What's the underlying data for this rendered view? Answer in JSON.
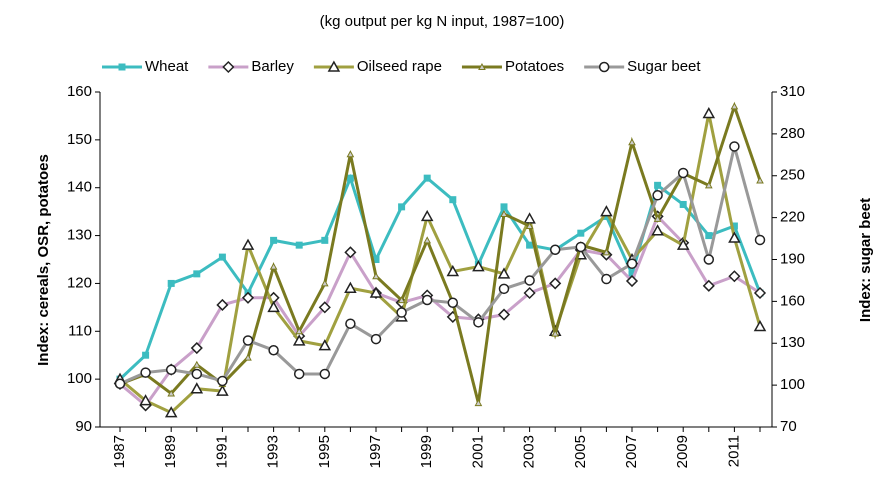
{
  "chart_data": {
    "type": "line",
    "title": "(kg output per kg N input, 1987=100)",
    "y_label": "Index: cereals, OSR, potatoes",
    "y2_label": "Index: sugar beet",
    "categories": [
      "1987",
      null,
      "1989",
      null,
      "1991",
      null,
      "1993",
      null,
      "1995",
      null,
      "1997",
      null,
      "1999",
      null,
      "2001",
      null,
      "2003",
      null,
      "2005",
      null,
      "2007",
      null,
      "2009",
      null,
      "2011",
      null
    ],
    "ylim": [
      90,
      160
    ],
    "yticks": [
      90,
      100,
      110,
      120,
      130,
      140,
      150,
      160
    ],
    "y2lim": [
      70,
      310
    ],
    "y2ticks": [
      70,
      100,
      130,
      160,
      190,
      220,
      250,
      280,
      310
    ],
    "legend": "top",
    "series": [
      {
        "name": "Wheat",
        "color": "#3cbcc0",
        "marker": "square",
        "values": [
          100,
          105,
          120,
          122,
          125.5,
          118,
          129,
          128,
          129,
          142,
          125,
          136,
          142,
          137.5,
          124,
          136,
          128,
          127,
          130.5,
          134,
          122,
          140.5,
          136.5,
          130,
          132,
          118
        ]
      },
      {
        "name": "Barley",
        "color": "#c9a0c9",
        "marker": "diamond",
        "values": [
          99,
          94.5,
          102,
          106.5,
          115.5,
          117,
          117,
          109,
          115,
          126.5,
          118,
          116,
          117.5,
          113,
          112.5,
          113.5,
          118,
          120,
          127,
          126,
          120.5,
          134,
          128.5,
          119.5,
          121.5,
          118
        ]
      },
      {
        "name": "Oilseed rape",
        "color": "#a0a040",
        "marker": "triangle",
        "values": [
          100,
          95.5,
          93,
          98,
          97.5,
          128,
          115,
          108,
          107,
          119,
          118,
          113,
          134,
          122.5,
          123.5,
          122,
          133.5,
          110,
          126,
          135,
          125,
          131,
          128,
          155.5,
          129.5,
          111
        ]
      },
      {
        "name": "Potatoes",
        "color": "#7a7a20",
        "marker": "small-triangle",
        "values": [
          99,
          101,
          97,
          103,
          99,
          104.5,
          123.5,
          110,
          120,
          147,
          121.5,
          116.5,
          129,
          116,
          95,
          134.5,
          132,
          109.5,
          128,
          126.5,
          149.5,
          133.5,
          143,
          140.5,
          157,
          141.5
        ]
      },
      {
        "name": "Sugar beet",
        "color": "#999999",
        "marker": "circle",
        "axis": "y2",
        "values": [
          101,
          109,
          111,
          108,
          103,
          132,
          125,
          108,
          108,
          144,
          133,
          152,
          161,
          159,
          145,
          169,
          175,
          197,
          199,
          176,
          187,
          236,
          252,
          190,
          271,
          204
        ]
      }
    ]
  }
}
